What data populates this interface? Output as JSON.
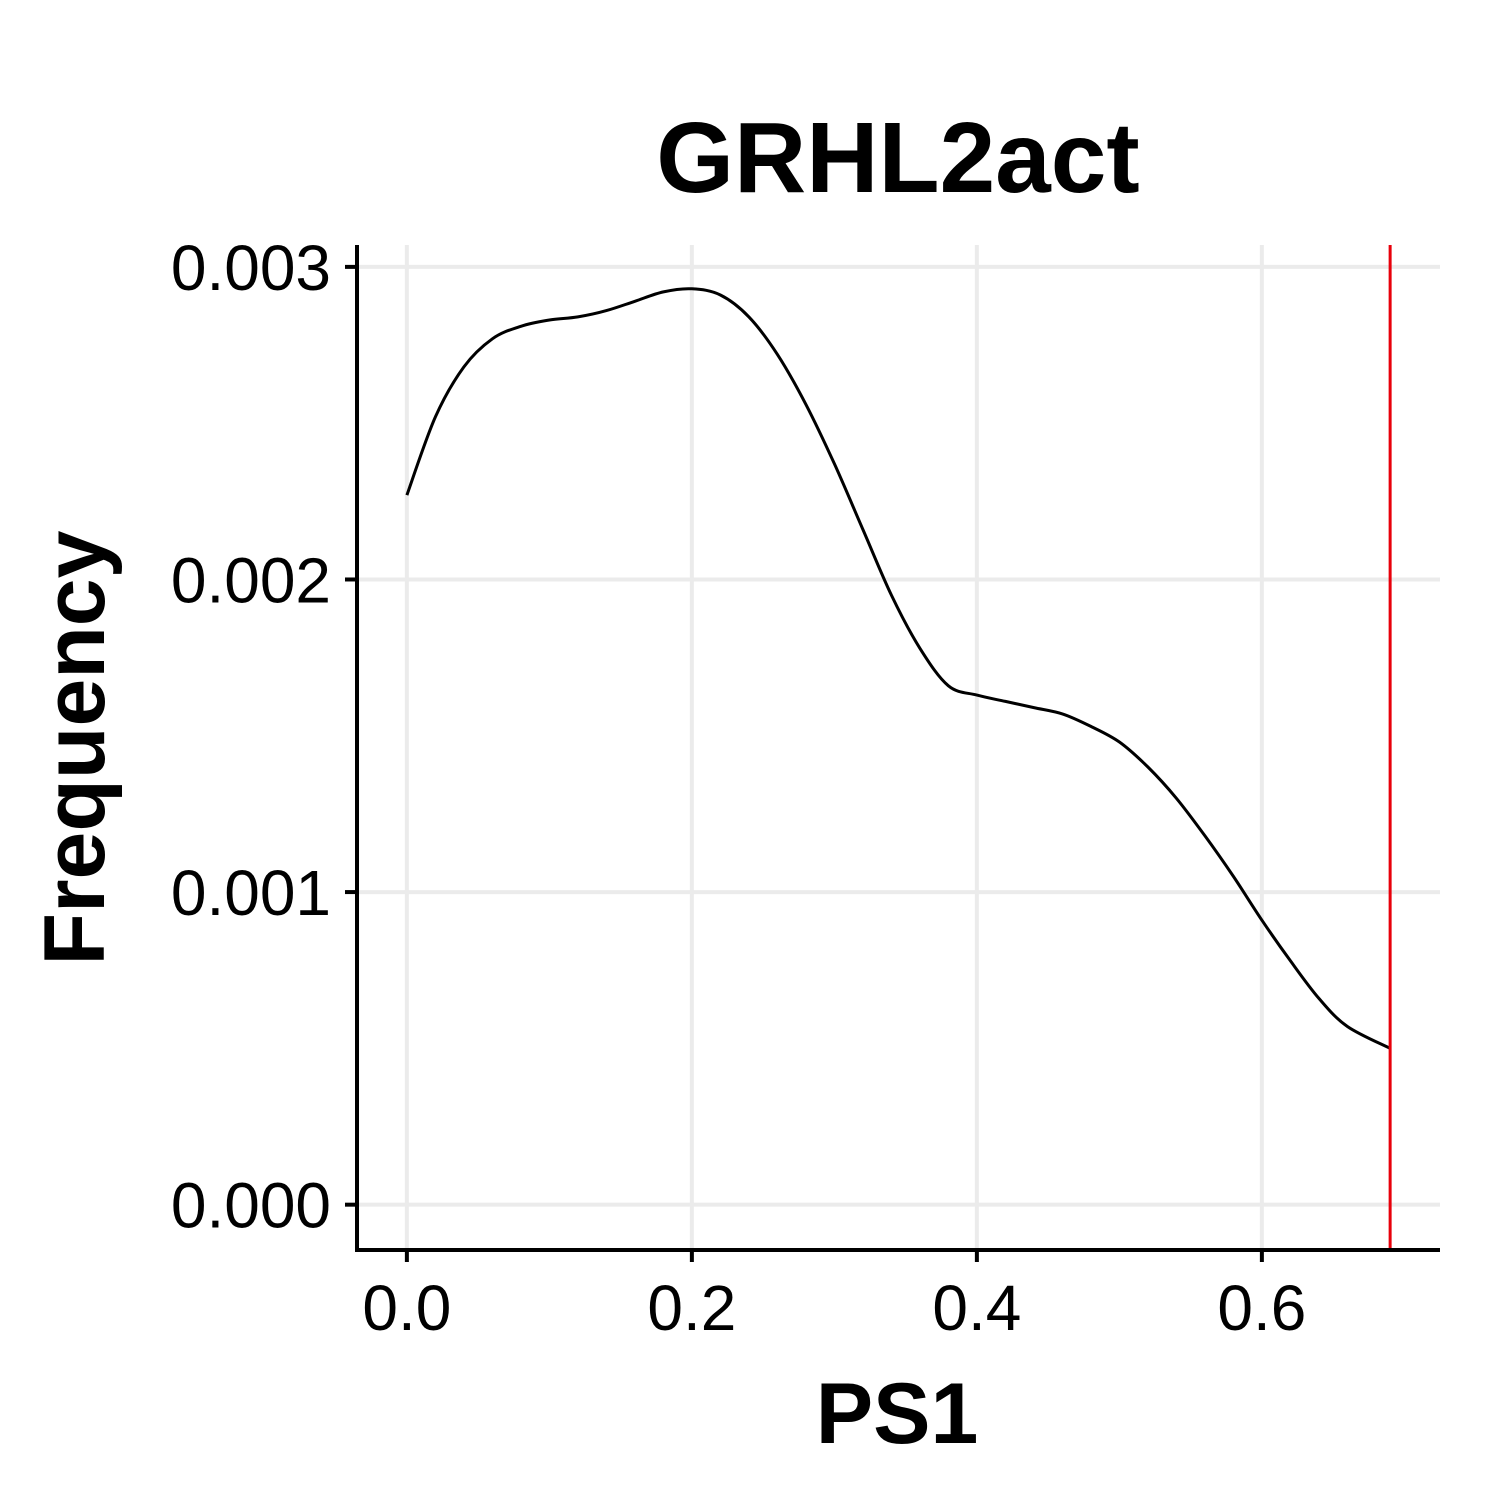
{
  "chart_data": {
    "type": "line",
    "title": "GRHL2act",
    "xlabel": "PS1",
    "ylabel": "Frequency",
    "xlim": [
      -0.035,
      0.725
    ],
    "ylim": [
      -0.000145,
      0.00307
    ],
    "x_ticks": [
      0.0,
      0.2,
      0.4,
      0.6
    ],
    "x_tick_labels": [
      "0.0",
      "0.2",
      "0.4",
      "0.6"
    ],
    "y_ticks": [
      0.0,
      0.001,
      0.002,
      0.003
    ],
    "y_tick_labels": [
      "0.000",
      "0.001",
      "0.002",
      "0.003"
    ],
    "grid": true,
    "series": [
      {
        "color": "#000000",
        "x": [
          0.0,
          0.02,
          0.04,
          0.06,
          0.08,
          0.1,
          0.12,
          0.14,
          0.16,
          0.18,
          0.2,
          0.22,
          0.24,
          0.26,
          0.28,
          0.3,
          0.32,
          0.34,
          0.36,
          0.38,
          0.4,
          0.42,
          0.44,
          0.46,
          0.48,
          0.5,
          0.52,
          0.54,
          0.56,
          0.58,
          0.6,
          0.62,
          0.64,
          0.66,
          0.69
        ],
        "y": [
          0.00227,
          0.00252,
          0.00268,
          0.00277,
          0.00281,
          0.00283,
          0.00284,
          0.00286,
          0.00289,
          0.00292,
          0.00293,
          0.00291,
          0.00284,
          0.00272,
          0.00256,
          0.00237,
          0.00216,
          0.00195,
          0.00178,
          0.00166,
          0.00163,
          0.00161,
          0.00159,
          0.00157,
          0.00153,
          0.00148,
          0.0014,
          0.0013,
          0.00118,
          0.00105,
          0.00091,
          0.00078,
          0.00066,
          0.00057,
          0.0005
        ]
      }
    ],
    "vline": {
      "x": 0.69,
      "color": "#E8000B"
    }
  }
}
